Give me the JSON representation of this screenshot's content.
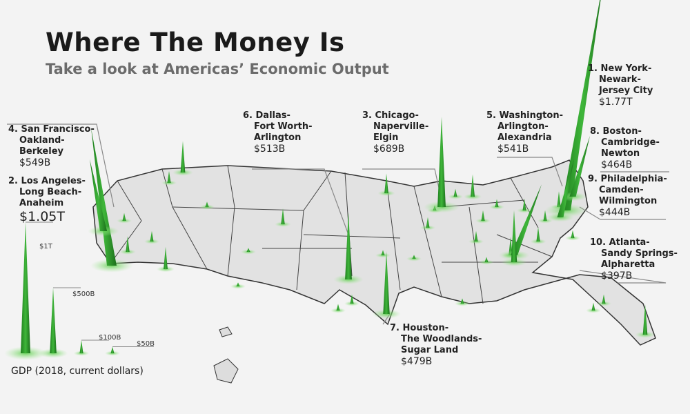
{
  "header": {
    "title": "Where The Money Is",
    "subtitle": "Take a look at Americas’ Economic Output"
  },
  "colors": {
    "spike": "#2e9e2e",
    "spike_glow": "#8fdc7a",
    "map_fill": "#e4e4e4",
    "border": "#222222",
    "leader": "#888888"
  },
  "cities": [
    {
      "rank": "1.",
      "lines": [
        "New York-",
        "Newark-",
        "Jersey City"
      ],
      "value": "$1.77T",
      "gdp_billion": 1770
    },
    {
      "rank": "2.",
      "lines": [
        "Los Angeles-",
        "Long Beach-",
        "Anaheim"
      ],
      "value": "$1.05T",
      "gdp_billion": 1050
    },
    {
      "rank": "3.",
      "lines": [
        "Chicago-",
        "Naperville-",
        "Elgin"
      ],
      "value": "$689B",
      "gdp_billion": 689
    },
    {
      "rank": "4.",
      "lines": [
        "San Francisco-",
        "Oakland-",
        "Berkeley"
      ],
      "value": "$549B",
      "gdp_billion": 549
    },
    {
      "rank": "5.",
      "lines": [
        "Washington-",
        "Arlington-",
        "Alexandria"
      ],
      "value": "$541B",
      "gdp_billion": 541
    },
    {
      "rank": "6.",
      "lines": [
        "Dallas-",
        "Fort Worth-",
        "Arlington"
      ],
      "value": "$513B",
      "gdp_billion": 513
    },
    {
      "rank": "7.",
      "lines": [
        "Houston-",
        "The Woodlands-",
        "Sugar Land"
      ],
      "value": "$479B",
      "gdp_billion": 479
    },
    {
      "rank": "8.",
      "lines": [
        "Boston-",
        "Cambridge-",
        "Newton"
      ],
      "value": "$464B",
      "gdp_billion": 464
    },
    {
      "rank": "9.",
      "lines": [
        "Philadelphia-",
        "Camden-",
        "Wilmington"
      ],
      "value": "$444B",
      "gdp_billion": 444
    },
    {
      "rank": "10.",
      "lines": [
        "Atlanta-",
        "Sandy Springs-",
        "Alpharetta"
      ],
      "value": "$397B",
      "gdp_billion": 397
    }
  ],
  "legend": {
    "title": "GDP (2018, current dollars)",
    "items": [
      {
        "label": "$1T",
        "gdp_billion": 1000
      },
      {
        "label": "$500B",
        "gdp_billion": 500
      },
      {
        "label": "$100B",
        "gdp_billion": 100
      },
      {
        "label": "$50B",
        "gdp_billion": 50
      }
    ]
  }
}
